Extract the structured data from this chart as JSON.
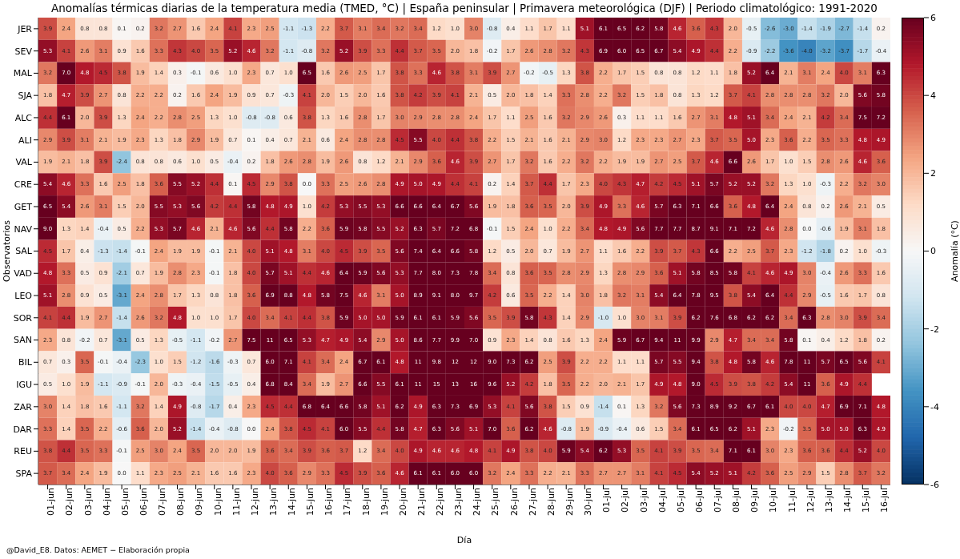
{
  "chart_data": {
    "type": "heatmap",
    "title": "Anomalías térmicas diarias de la temperatura media (TMED, °C) | España peninsular | Primavera meteorológica (DJF) | Periodo climatológico: 1991-2020",
    "xlabel": "Día",
    "ylabel": "Observatorios",
    "clabel": "Anomalía (°C)",
    "annotations": [
      "@David_E8. Datos: AEMET − Elaboración propia"
    ],
    "categories": [
      "01-jun",
      "02-jun",
      "03-jun",
      "04-jun",
      "05-jun",
      "06-jun",
      "07-jun",
      "08-jun",
      "09-jun",
      "10-jun",
      "11-jun",
      "12-jun",
      "13-jun",
      "14-jun",
      "15-jun",
      "16-jun",
      "17-jun",
      "18-jun",
      "19-jun",
      "20-jun",
      "21-jun",
      "22-jun",
      "23-jun",
      "24-jun",
      "25-jun",
      "26-jun",
      "27-jun",
      "28-jun",
      "29-jun",
      "30-jun",
      "01-jul",
      "02-jul",
      "03-jul",
      "04-jul",
      "05-jul",
      "06-jul",
      "07-jul",
      "08-jul",
      "09-jul",
      "10-jul",
      "11-jul",
      "12-jul",
      "13-jul",
      "14-jul",
      "15-jul",
      "16-jul"
    ],
    "y_categories": [
      "JER",
      "SEV",
      "MAL",
      "SJA",
      "ALC",
      "ALI",
      "VAL",
      "CRE",
      "GET",
      "NAV",
      "SAL",
      "VAD",
      "LEO",
      "SOR",
      "SAN",
      "BIL",
      "IGU",
      "ZAR",
      "DAR",
      "REU",
      "SPA"
    ],
    "cells": [
      [
        3.9,
        2.4,
        0.8,
        0.8,
        0.1,
        0.2,
        3.2,
        2.7,
        1.6,
        2.4,
        4.1,
        2.3,
        2.5,
        -1.1,
        -1.3,
        2.2,
        3.7,
        3.1,
        3.4,
        3.2,
        3.4,
        1.2,
        1.0,
        3.0,
        -0.8,
        0.4,
        1.1,
        1.7,
        1.1,
        5.1,
        6.1,
        6.5,
        6.2,
        5.8,
        4.6,
        3.6,
        4.3,
        2.0,
        -0.5,
        -2.6,
        -3.0,
        -1.4,
        -1.9,
        -2.7,
        -1.4,
        0.2
      ],
      [
        5.3,
        4.1,
        2.6,
        3.1,
        0.9,
        1.6,
        3.3,
        4.3,
        4.0,
        3.5,
        5.2,
        4.6,
        3.2,
        -1.1,
        -0.8,
        3.2,
        5.2,
        3.9,
        3.3,
        4.4,
        3.7,
        3.5,
        2.0,
        1.8,
        -0.2,
        1.7,
        2.6,
        2.8,
        3.2,
        4.3,
        6.9,
        6.0,
        6.5,
        6.7,
        5.4,
        4.9,
        4.4,
        2.2,
        -0.9,
        -2.2,
        -3.6,
        -4.0,
        -3.2,
        -3.7,
        -1.7,
        -0.4
      ],
      [
        3.2,
        7.0,
        4.8,
        4.5,
        3.8,
        1.9,
        1.4,
        0.3,
        -0.1,
        0.6,
        1.0,
        2.3,
        0.7,
        1.0,
        6.5,
        1.6,
        2.6,
        2.5,
        1.7,
        3.8,
        3.3,
        4.6,
        3.8,
        3.1,
        3.9,
        2.7,
        -0.2,
        -0.5,
        1.3,
        3.8,
        2.2,
        1.7,
        1.5,
        0.8,
        0.8,
        1.2,
        1.1,
        1.8,
        5.2,
        6.4,
        2.1,
        3.1,
        2.4,
        4.0,
        3.1,
        6.3
      ],
      [
        1.8,
        4.7,
        3.9,
        2.7,
        0.8,
        2.2,
        2.2,
        0.2,
        1.6,
        2.4,
        1.9,
        0.9,
        0.7,
        -0.3,
        4.1,
        2.0,
        1.5,
        2.0,
        1.6,
        3.8,
        4.2,
        3.9,
        4.1,
        2.1,
        0.5,
        2.0,
        1.8,
        1.4,
        3.3,
        2.8,
        2.2,
        3.2,
        1.5,
        1.8,
        0.8,
        1.3,
        1.2,
        3.7,
        4.1,
        2.8,
        2.8,
        2.8,
        3.2,
        2.0,
        5.6,
        5.8
      ],
      [
        4.4,
        6.1,
        2.0,
        3.9,
        1.3,
        2.4,
        2.2,
        2.8,
        2.5,
        1.3,
        1.0,
        -0.8,
        -0.8,
        0.6,
        3.8,
        1.3,
        1.6,
        2.8,
        1.7,
        3.0,
        2.9,
        2.8,
        2.8,
        2.4,
        1.7,
        1.1,
        2.5,
        1.6,
        3.2,
        2.9,
        2.6,
        0.3,
        1.1,
        1.1,
        1.6,
        2.7,
        3.1,
        4.8,
        5.1,
        3.4,
        2.4,
        2.1,
        4.2,
        3.4,
        7.5,
        7.2
      ],
      [
        2.9,
        3.9,
        3.1,
        2.1,
        1.9,
        2.3,
        1.3,
        1.8,
        2.9,
        1.9,
        0.7,
        0.1,
        0.4,
        0.7,
        2.1,
        0.6,
        2.4,
        2.8,
        2.8,
        4.5,
        5.5,
        4.0,
        4.4,
        3.8,
        2.2,
        1.5,
        2.1,
        1.6,
        2.1,
        2.9,
        3.0,
        1.2,
        2.3,
        2.3,
        2.7,
        2.3,
        3.7,
        3.5,
        5.0,
        2.3,
        3.6,
        2.2,
        3.5,
        3.3,
        4.8,
        4.9
      ],
      [
        1.9,
        2.1,
        1.8,
        3.9,
        -2.4,
        0.8,
        0.8,
        0.6,
        1.0,
        0.5,
        -0.4,
        0.2,
        1.8,
        2.6,
        2.8,
        1.9,
        2.6,
        0.8,
        1.2,
        2.1,
        2.9,
        3.6,
        4.6,
        3.9,
        2.7,
        1.7,
        3.2,
        1.6,
        2.2,
        3.2,
        2.2,
        1.9,
        1.9,
        2.7,
        2.5,
        3.7,
        4.6,
        6.6,
        2.6,
        1.7,
        1.0,
        1.5,
        2.8,
        2.6,
        4.6,
        3.6
      ],
      [
        5.4,
        4.6,
        3.3,
        1.6,
        2.5,
        1.8,
        3.6,
        5.5,
        5.2,
        4.4,
        0.1,
        4.5,
        2.9,
        3.8,
        0.0,
        3.3,
        2.5,
        2.6,
        2.8,
        4.9,
        5.0,
        4.9,
        4.4,
        4.1,
        0.2,
        1.4,
        3.7,
        4.4,
        1.7,
        2.3,
        4.0,
        4.3,
        4.7,
        4.2,
        4.5,
        5.1,
        5.7,
        5.2,
        5.2,
        3.2,
        1.3,
        1.0,
        -0.3,
        2.2,
        3.2,
        3.0
      ],
      [
        6.5,
        5.4,
        2.6,
        3.1,
        1.5,
        2.0,
        5.5,
        5.3,
        5.6,
        4.2,
        4.4,
        5.8,
        4.8,
        4.9,
        1.0,
        4.2,
        5.3,
        5.5,
        5.3,
        6.6,
        6.6,
        6.4,
        6.7,
        5.6,
        1.9,
        1.8,
        3.6,
        3.5,
        2.0,
        3.9,
        4.9,
        3.3,
        4.6,
        5.7,
        6.3,
        7.1,
        6.6,
        3.6,
        4.8,
        6.4,
        2.4,
        0.8,
        0.2,
        2.6,
        2.1,
        0.5
      ],
      [
        9.0,
        1.3,
        1.4,
        -0.4,
        0.5,
        2.2,
        5.3,
        5.7,
        4.6,
        2.1,
        4.6,
        5.6,
        4.4,
        5.8,
        2.2,
        3.6,
        5.9,
        5.8,
        5.5,
        5.2,
        6.3,
        5.7,
        7.2,
        6.8,
        -0.1,
        1.5,
        2.4,
        1.0,
        2.2,
        3.4,
        4.8,
        4.9,
        5.6,
        7.7,
        7.7,
        8.7,
        9.1,
        7.1,
        7.2,
        4.6,
        2.8,
        0.0,
        -0.6,
        1.9,
        3.1,
        1.8
      ],
      [
        4.5,
        1.7,
        0.4,
        -1.3,
        -1.4,
        -0.1,
        2.4,
        1.9,
        1.9,
        -0.1,
        2.1,
        4.0,
        5.1,
        4.8,
        3.1,
        4.0,
        4.5,
        3.9,
        3.5,
        5.6,
        7.4,
        6.4,
        6.6,
        5.8,
        1.2,
        0.5,
        2.0,
        0.7,
        1.9,
        2.7,
        1.1,
        1.6,
        2.2,
        3.9,
        3.7,
        4.3,
        6.6,
        2.2,
        2.5,
        3.7,
        2.3,
        -1.2,
        -1.8,
        0.2,
        1.0,
        -0.3
      ],
      [
        4.8,
        3.3,
        0.5,
        0.9,
        -2.1,
        0.7,
        1.9,
        2.8,
        2.3,
        -0.1,
        1.8,
        4.0,
        5.7,
        5.1,
        4.4,
        4.6,
        6.4,
        5.9,
        5.6,
        5.3,
        7.7,
        8.0,
        7.3,
        7.8,
        3.4,
        0.8,
        3.6,
        3.5,
        2.8,
        2.9,
        1.3,
        2.8,
        2.9,
        3.6,
        5.1,
        5.8,
        8.5,
        5.8,
        4.1,
        4.6,
        4.9,
        3.0,
        -0.4,
        2.6,
        3.3,
        1.6
      ],
      [
        5.1,
        2.8,
        0.9,
        0.5,
        -3.1,
        2.4,
        2.8,
        1.7,
        1.3,
        0.8,
        1.8,
        3.6,
        6.9,
        8.8,
        4.8,
        5.8,
        7.5,
        4.6,
        3.1,
        5.0,
        8.9,
        9.1,
        8.0,
        9.7,
        4.2,
        0.6,
        3.5,
        2.2,
        1.4,
        3.0,
        1.8,
        3.2,
        3.1,
        5.4,
        6.4,
        7.8,
        9.5,
        3.8,
        5.4,
        6.4,
        4.4,
        2.9,
        -0.5,
        1.6,
        1.7,
        0.8
      ],
      [
        4.1,
        4.4,
        1.9,
        2.7,
        -1.4,
        2.6,
        3.2,
        4.8,
        1.0,
        1.0,
        1.7,
        4.0,
        3.4,
        4.1,
        4.4,
        3.8,
        5.9,
        5.0,
        5.0,
        5.9,
        6.1,
        6.1,
        5.9,
        5.6,
        3.5,
        3.9,
        5.8,
        4.3,
        1.4,
        2.9,
        -1.0,
        1.0,
        3.0,
        3.1,
        3.9,
        6.2,
        7.6,
        6.8,
        6.2,
        6.2,
        3.4,
        6.3,
        2.8,
        3.0,
        3.9,
        3.4
      ],
      [
        2.3,
        0.8,
        -0.2,
        0.7,
        -3.1,
        0.5,
        1.3,
        -0.5,
        -1.1,
        -0.2,
        2.7,
        7.5,
        11,
        6.5,
        5.3,
        4.7,
        4.9,
        5.4,
        2.9,
        5.0,
        8.6,
        7.7,
        9.9,
        7.0,
        0.9,
        2.3,
        1.4,
        0.8,
        1.6,
        1.3,
        2.4,
        5.9,
        6.7,
        9.4,
        11,
        9.9,
        2.9,
        4.7,
        3.4,
        3.4,
        5.8,
        0.1,
        0.4,
        1.2,
        1.8,
        0.2
      ],
      [
        0.7,
        0.3,
        3.5,
        -0.1,
        -0.4,
        -2.3,
        1.0,
        1.5,
        -1.2,
        -1.6,
        -0.3,
        0.7,
        6.0,
        7.1,
        4.1,
        3.4,
        2.4,
        6.7,
        6.1,
        4.8,
        11,
        9.8,
        12,
        12,
        9.0,
        7.3,
        6.2,
        2.5,
        3.9,
        2.2,
        2.2,
        1.1,
        1.1,
        5.7,
        5.5,
        9.4,
        3.8,
        4.8,
        5.8,
        4.6,
        7.8,
        11,
        5.7,
        6.5,
        5.6,
        4.1
      ],
      [
        0.5,
        1.0,
        1.9,
        -1.1,
        -0.9,
        -0.1,
        2.0,
        -0.3,
        -0.4,
        -1.5,
        -0.5,
        0.4,
        6.8,
        8.4,
        3.4,
        1.9,
        2.7,
        6.6,
        5.5,
        6.1,
        11,
        15,
        13,
        16,
        9.6,
        5.2,
        4.2,
        1.8,
        3.5,
        2.2,
        2.0,
        2.1,
        1.7,
        4.9,
        4.8,
        9.0,
        4.5,
        3.9,
        3.8,
        4.2,
        5.4,
        11,
        3.6,
        4.9,
        4.4,
        null
      ],
      [
        3.0,
        1.4,
        1.8,
        1.6,
        -1.1,
        3.2,
        1.4,
        4.9,
        -0.8,
        -1.7,
        0.4,
        2.3,
        4.5,
        4.4,
        6.8,
        6.4,
        6.6,
        5.8,
        5.1,
        6.2,
        4.9,
        6.3,
        7.3,
        6.9,
        5.3,
        4.1,
        5.6,
        3.8,
        1.5,
        0.9,
        -1.4,
        0.1,
        1.3,
        3.2,
        5.6,
        7.3,
        8.9,
        9.2,
        6.7,
        6.1,
        4.0,
        4.0,
        4.7,
        6.9,
        7.1,
        4.8
      ],
      [
        3.3,
        1.4,
        3.5,
        2.2,
        -0.6,
        3.6,
        2.0,
        5.2,
        -1.4,
        -0.4,
        -0.8,
        0.0,
        2.4,
        3.8,
        4.5,
        4.1,
        6.0,
        5.5,
        4.4,
        5.8,
        4.7,
        6.3,
        5.6,
        5.1,
        7.0,
        3.6,
        6.2,
        4.6,
        -0.8,
        1.9,
        -0.9,
        -0.4,
        0.6,
        1.5,
        3.4,
        6.1,
        6.5,
        6.2,
        5.1,
        2.3,
        -0.2,
        3.5,
        5.0,
        5.0,
        6.3,
        4.9
      ],
      [
        3.8,
        4.4,
        3.5,
        3.3,
        -0.1,
        2.5,
        3.0,
        2.4,
        3.5,
        2.0,
        2.0,
        1.9,
        3.6,
        3.4,
        3.9,
        3.6,
        3.7,
        1.2,
        3.4,
        4.0,
        4.9,
        4.6,
        4.6,
        4.8,
        4.1,
        4.9,
        3.8,
        4.0,
        5.9,
        5.4,
        6.2,
        5.3,
        3.5,
        4.1,
        3.9,
        3.5,
        3.4,
        7.1,
        6.1,
        3.0,
        2.3,
        3.6,
        3.6,
        4.4,
        5.2,
        4.0
      ],
      [
        3.7,
        3.4,
        2.4,
        1.9,
        0.0,
        1.1,
        2.3,
        2.5,
        2.1,
        1.6,
        1.6,
        2.3,
        4.0,
        3.6,
        2.9,
        3.3,
        4.5,
        3.9,
        3.6,
        4.6,
        6.1,
        6.1,
        6.0,
        6.0,
        3.2,
        2.4,
        3.3,
        2.2,
        2.1,
        3.3,
        2.7,
        2.7,
        3.1,
        4.1,
        4.5,
        5.4,
        5.2,
        5.1,
        4.2,
        3.6,
        2.5,
        2.9,
        1.5,
        2.8,
        3.7,
        3.2
      ]
    ],
    "cell_labels": [
      [
        "3.9",
        "2.4",
        "0.8",
        "0.8",
        "0.1",
        "0.2",
        "3.2",
        "2.7",
        "1.6",
        "2.4",
        "4.1",
        "2.3",
        "2.5",
        "-1.1",
        "-1.3",
        "2.2",
        "3.7",
        "3.1",
        "3.4",
        "3.2",
        "3.4",
        "1.2",
        "1.0",
        "3.0",
        "-0.8",
        "0.4",
        "1.1",
        "1.7",
        "1.1",
        "5.1",
        "6.1",
        "6.5",
        "6.2",
        "5.8",
        "4.6",
        "3.6",
        "4.3",
        "2.0",
        "-0.5",
        "-2.6",
        "-3.0",
        "-1.4",
        "-1.9",
        "-2.7",
        "-1.4",
        "0.2"
      ],
      [
        "5.3",
        "4.1",
        "2.6",
        "3.1",
        "0.9",
        "1.6",
        "3.3",
        "4.3",
        "4.0",
        "3.5",
        "5.2",
        "4.6",
        "3.2",
        "-1.1",
        "-0.8",
        "3.2",
        "5.2",
        "3.9",
        "3.3",
        "4.4",
        "3.7",
        "3.5",
        "2.0",
        "1.8",
        "-0.2",
        "1.7",
        "2.6",
        "2.8",
        "3.2",
        "4.3",
        "6.9",
        "6.0",
        "6.5",
        "6.7",
        "5.4",
        "4.9",
        "4.4",
        "2.2",
        "-0.9",
        "-2.2",
        "-3.6",
        "-4.0",
        "-3.2",
        "-3.7",
        "-1.7",
        "-0.4"
      ],
      [
        "3.2",
        "7.0",
        "4.8",
        "4.5",
        "3.8",
        "1.9",
        "1.4",
        "0.3",
        "-0.1",
        "0.6",
        "1.0",
        "2.3",
        "0.7",
        "1.0",
        "6.5",
        "1.6",
        "2.6",
        "2.5",
        "1.7",
        "3.8",
        "3.3",
        "4.6",
        "3.8",
        "3.1",
        "3.9",
        "2.7",
        "-0.2",
        "-0.5",
        "1.3",
        "3.8",
        "2.2",
        "1.7",
        "1.5",
        "0.8",
        "0.8",
        "1.2",
        "1.1",
        "1.8",
        "5.2",
        "6.4",
        "2.1",
        "3.1",
        "2.4",
        "4.0",
        "3.1",
        "6.3"
      ],
      [
        "1.8",
        "4.7",
        "3.9",
        "2.7",
        "0.8",
        "2.2",
        "2.2",
        "0.2",
        "1.6",
        "2.4",
        "1.9",
        "0.9",
        "0.7",
        "-0.3",
        "4.1",
        "2.0",
        "1.5",
        "2.0",
        "1.6",
        "3.8",
        "4.2",
        "3.9",
        "4.1",
        "2.1",
        "0.5",
        "2.0",
        "1.8",
        "1.4",
        "3.3",
        "2.8",
        "2.2",
        "3.2",
        "1.5",
        "1.8",
        "0.8",
        "1.3",
        "1.2",
        "3.7",
        "4.1",
        "2.8",
        "2.8",
        "2.8",
        "3.2",
        "2.0",
        "5.6",
        "5.8"
      ],
      [
        "4.4",
        "6.1",
        "2.0",
        "3.9",
        "1.3",
        "2.4",
        "2.2",
        "2.8",
        "2.5",
        "1.3",
        "1.0",
        "-0.8",
        "-0.8",
        "0.6",
        "3.8",
        "1.3",
        "1.6",
        "2.8",
        "1.7",
        "3.0",
        "2.9",
        "2.8",
        "2.8",
        "2.4",
        "1.7",
        "1.1",
        "2.5",
        "1.6",
        "3.2",
        "2.9",
        "2.6",
        "0.3",
        "1.1",
        "1.1",
        "1.6",
        "2.7",
        "3.1",
        "4.8",
        "5.1",
        "3.4",
        "2.4",
        "2.1",
        "4.2",
        "3.4",
        "7.5",
        "7.2"
      ],
      [
        "2.9",
        "3.9",
        "3.1",
        "2.1",
        "1.9",
        "2.3",
        "1.3",
        "1.8",
        "2.9",
        "1.9",
        "0.7",
        "0.1",
        "0.4",
        "0.7",
        "2.1",
        "0.6",
        "2.4",
        "2.8",
        "2.8",
        "4.5",
        "5.5",
        "4.0",
        "4.4",
        "3.8",
        "2.2",
        "1.5",
        "2.1",
        "1.6",
        "2.1",
        "2.9",
        "3.0",
        "1.2",
        "2.3",
        "2.3",
        "2.7",
        "2.3",
        "3.7",
        "3.5",
        "5.0",
        "2.3",
        "3.6",
        "2.2",
        "3.5",
        "3.3",
        "4.8",
        "4.9"
      ],
      [
        "1.9",
        "2.1",
        "1.8",
        "3.9",
        "-2.4",
        "0.8",
        "0.8",
        "0.6",
        "1.0",
        "0.5",
        "-0.4",
        "0.2",
        "1.8",
        "2.6",
        "2.8",
        "1.9",
        "2.6",
        "0.8",
        "1.2",
        "2.1",
        "2.9",
        "3.6",
        "4.6",
        "3.9",
        "2.7",
        "1.7",
        "3.2",
        "1.6",
        "2.2",
        "3.2",
        "2.2",
        "1.9",
        "1.9",
        "2.7",
        "2.5",
        "3.7",
        "4.6",
        "6.6",
        "2.6",
        "1.7",
        "1.0",
        "1.5",
        "2.8",
        "2.6",
        "4.6",
        "3.6"
      ],
      [
        "5.4",
        "4.6",
        "3.3",
        "1.6",
        "2.5",
        "1.8",
        "3.6",
        "5.5",
        "5.2",
        "4.4",
        "0.1",
        "4.5",
        "2.9",
        "3.8",
        "0.0",
        "3.3",
        "2.5",
        "2.6",
        "2.8",
        "4.9",
        "5.0",
        "4.9",
        "4.4",
        "4.1",
        "0.2",
        "1.4",
        "3.7",
        "4.4",
        "1.7",
        "2.3",
        "4.0",
        "4.3",
        "4.7",
        "4.2",
        "4.5",
        "5.1",
        "5.7",
        "5.2",
        "5.2",
        "3.2",
        "1.3",
        "1.0",
        "-0.3",
        "2.2",
        "3.2",
        "3.0"
      ],
      [
        "6.5",
        "5.4",
        "2.6",
        "3.1",
        "1.5",
        "2.0",
        "5.5",
        "5.3",
        "5.6",
        "4.2",
        "4.4",
        "5.8",
        "4.8",
        "4.9",
        "1.0",
        "4.2",
        "5.3",
        "5.5",
        "5.3",
        "6.6",
        "6.6",
        "6.4",
        "6.7",
        "5.6",
        "1.9",
        "1.8",
        "3.6",
        "3.5",
        "2.0",
        "3.9",
        "4.9",
        "3.3",
        "4.6",
        "5.7",
        "6.3",
        "7.1",
        "6.6",
        "3.6",
        "4.8",
        "6.4",
        "2.4",
        "0.8",
        "0.2",
        "2.6",
        "2.1",
        "0.5"
      ],
      [
        "9.0",
        "1.3",
        "1.4",
        "-0.4",
        "0.5",
        "2.2",
        "5.3",
        "5.7",
        "4.6",
        "2.1",
        "4.6",
        "5.6",
        "4.4",
        "5.8",
        "2.2",
        "3.6",
        "5.9",
        "5.8",
        "5.5",
        "5.2",
        "6.3",
        "5.7",
        "7.2",
        "6.8",
        "-0.1",
        "1.5",
        "2.4",
        "1.0",
        "2.2",
        "3.4",
        "4.8",
        "4.9",
        "5.6",
        "7.7",
        "7.7",
        "8.7",
        "9.1",
        "7.1",
        "7.2",
        "4.6",
        "2.8",
        "0.0",
        "-0.6",
        "1.9",
        "3.1",
        "1.8"
      ],
      [
        "4.5",
        "1.7",
        "0.4",
        "-1.3",
        "-1.4",
        "-0.1",
        "2.4",
        "1.9",
        "1.9",
        "-0.1",
        "2.1",
        "4.0",
        "5.1",
        "4.8",
        "3.1",
        "4.0",
        "4.5",
        "3.9",
        "3.5",
        "5.6",
        "7.4",
        "6.4",
        "6.6",
        "5.8",
        "1.2",
        "0.5",
        "2.0",
        "0.7",
        "1.9",
        "2.7",
        "1.1",
        "1.6",
        "2.2",
        "3.9",
        "3.7",
        "4.3",
        "6.6",
        "2.2",
        "2.5",
        "3.7",
        "2.3",
        "-1.2",
        "-1.8",
        "0.2",
        "1.0",
        "-0.3"
      ],
      [
        "4.8",
        "3.3",
        "0.5",
        "0.9",
        "-2.1",
        "0.7",
        "1.9",
        "2.8",
        "2.3",
        "-0.1",
        "1.8",
        "4.0",
        "5.7",
        "5.1",
        "4.4",
        "4.6",
        "6.4",
        "5.9",
        "5.6",
        "5.3",
        "7.7",
        "8.0",
        "7.3",
        "7.8",
        "3.4",
        "0.8",
        "3.6",
        "3.5",
        "2.8",
        "2.9",
        "1.3",
        "2.8",
        "2.9",
        "3.6",
        "5.1",
        "5.8",
        "8.5",
        "5.8",
        "4.1",
        "4.6",
        "4.9",
        "3.0",
        "-0.4",
        "2.6",
        "3.3",
        "1.6"
      ],
      [
        "5.1",
        "2.8",
        "0.9",
        "0.5",
        "-3.1",
        "2.4",
        "2.8",
        "1.7",
        "1.3",
        "0.8",
        "1.8",
        "3.6",
        "6.9",
        "8.8",
        "4.8",
        "5.8",
        "7.5",
        "4.6",
        "3.1",
        "5.0",
        "8.9",
        "9.1",
        "8.0",
        "9.7",
        "4.2",
        "0.6",
        "3.5",
        "2.2",
        "1.4",
        "3.0",
        "1.8",
        "3.2",
        "3.1",
        "5.4",
        "6.4",
        "7.8",
        "9.5",
        "3.8",
        "5.4",
        "6.4",
        "4.4",
        "2.9",
        "-0.5",
        "1.6",
        "1.7",
        "0.8"
      ],
      [
        "4.1",
        "4.4",
        "1.9",
        "2.7",
        "-1.4",
        "2.6",
        "3.2",
        "4.8",
        "1.0",
        "1.0",
        "1.7",
        "4.0",
        "3.4",
        "4.1",
        "4.4",
        "3.8",
        "5.9",
        "5.0",
        "5.0",
        "5.9",
        "6.1",
        "6.1",
        "5.9",
        "5.6",
        "3.5",
        "3.9",
        "5.8",
        "4.3",
        "1.4",
        "2.9",
        "-1.0",
        "1.0",
        "3.0",
        "3.1",
        "3.9",
        "6.2",
        "7.6",
        "6.8",
        "6.2",
        "6.2",
        "3.4",
        "6.3",
        "2.8",
        "3.0",
        "3.9",
        "3.4"
      ],
      [
        "2.3",
        "0.8",
        "-0.2",
        "0.7",
        "-3.1",
        "0.5",
        "1.3",
        "-0.5",
        "-1.1",
        "-0.2",
        "2.7",
        "7.5",
        "11",
        "6.5",
        "5.3",
        "4.7",
        "4.9",
        "5.4",
        "2.9",
        "5.0",
        "8.6",
        "7.7",
        "9.9",
        "7.0",
        "0.9",
        "2.3",
        "1.4",
        "0.8",
        "1.6",
        "1.3",
        "2.4",
        "5.9",
        "6.7",
        "9.4",
        "11",
        "9.9",
        "2.9",
        "4.7",
        "3.4",
        "3.4",
        "5.8",
        "0.1",
        "0.4",
        "1.2",
        "1.8",
        "0.2"
      ],
      [
        "0.7",
        "0.3",
        "3.5",
        "-0.1",
        "-0.4",
        "-2.3",
        "1.0",
        "1.5",
        "-1.2",
        "-1.6",
        "-0.3",
        "0.7",
        "6.0",
        "7.1",
        "4.1",
        "3.4",
        "2.4",
        "6.7",
        "6.1",
        "4.8",
        "11",
        "9.8",
        "12",
        "12",
        "9.0",
        "7.3",
        "6.2",
        "2.5",
        "3.9",
        "2.2",
        "2.2",
        "1.1",
        "1.1",
        "5.7",
        "5.5",
        "9.4",
        "3.8",
        "4.8",
        "5.8",
        "4.6",
        "7.8",
        "11",
        "5.7",
        "6.5",
        "5.6",
        "4.1"
      ],
      [
        "0.5",
        "1.0",
        "1.9",
        "-1.1",
        "-0.9",
        "-0.1",
        "2.0",
        "-0.3",
        "-0.4",
        "-1.5",
        "-0.5",
        "0.4",
        "6.8",
        "8.4",
        "3.4",
        "1.9",
        "2.7",
        "6.6",
        "5.5",
        "6.1",
        "11",
        "15",
        "13",
        "16",
        "9.6",
        "5.2",
        "4.2",
        "1.8",
        "3.5",
        "2.2",
        "2.0",
        "2.1",
        "1.7",
        "4.9",
        "4.8",
        "9.0",
        "4.5",
        "3.9",
        "3.8",
        "4.2",
        "5.4",
        "11",
        "3.6",
        "4.9",
        "4.4",
        null
      ],
      [
        "3.0",
        "1.4",
        "1.8",
        "1.6",
        "-1.1",
        "3.2",
        "1.4",
        "4.9",
        "-0.8",
        "-1.7",
        "0.4",
        "2.3",
        "4.5",
        "4.4",
        "6.8",
        "6.4",
        "6.6",
        "5.8",
        "5.1",
        "6.2",
        "4.9",
        "6.3",
        "7.3",
        "6.9",
        "5.3",
        "4.1",
        "5.6",
        "3.8",
        "1.5",
        "0.9",
        "-1.4",
        "0.1",
        "1.3",
        "3.2",
        "5.6",
        "7.3",
        "8.9",
        "9.2",
        "6.7",
        "6.1",
        "4.0",
        "4.0",
        "4.7",
        "6.9",
        "7.1",
        "4.8"
      ],
      [
        "3.3",
        "1.4",
        "3.5",
        "2.2",
        "-0.6",
        "3.6",
        "2.0",
        "5.2",
        "-1.4",
        "-0.4",
        "-0.8",
        "0.0",
        "2.4",
        "3.8",
        "4.5",
        "4.1",
        "6.0",
        "5.5",
        "4.4",
        "5.8",
        "4.7",
        "6.3",
        "5.6",
        "5.1",
        "7.0",
        "3.6",
        "6.2",
        "4.6",
        "-0.8",
        "1.9",
        "-0.9",
        "-0.4",
        "0.6",
        "1.5",
        "3.4",
        "6.1",
        "6.5",
        "6.2",
        "5.1",
        "2.3",
        "-0.2",
        "3.5",
        "5.0",
        "5.0",
        "6.3",
        "4.9"
      ],
      [
        "3.8",
        "4.4",
        "3.5",
        "3.3",
        "-0.1",
        "2.5",
        "3.0",
        "2.4",
        "3.5",
        "2.0",
        "2.0",
        "1.9",
        "3.6",
        "3.4",
        "3.9",
        "3.6",
        "3.7",
        "1.2",
        "3.4",
        "4.0",
        "4.9",
        "4.6",
        "4.6",
        "4.8",
        "4.1",
        "4.9",
        "3.8",
        "4.0",
        "5.9",
        "5.4",
        "6.2",
        "5.3",
        "3.5",
        "4.1",
        "3.9",
        "3.5",
        "3.4",
        "7.1",
        "6.1",
        "3.0",
        "2.3",
        "3.6",
        "3.6",
        "4.4",
        "5.2",
        "4.0"
      ],
      [
        "3.7",
        "3.4",
        "2.4",
        "1.9",
        "0.0",
        "1.1",
        "2.3",
        "2.5",
        "2.1",
        "1.6",
        "1.6",
        "2.3",
        "4.0",
        "3.6",
        "2.9",
        "3.3",
        "4.5",
        "3.9",
        "3.6",
        "4.6",
        "6.1",
        "6.1",
        "6.0",
        "6.0",
        "3.2",
        "2.4",
        "3.3",
        "2.2",
        "2.1",
        "3.3",
        "2.7",
        "2.7",
        "3.1",
        "4.1",
        "4.5",
        "5.4",
        "5.2",
        "5.1",
        "4.2",
        "3.6",
        "2.5",
        "2.9",
        "1.5",
        "2.8",
        "3.7",
        "3.2"
      ]
    ],
    "clim": [
      -6,
      6
    ],
    "cticks": [
      -6,
      -4,
      -2,
      0,
      2,
      4,
      6
    ]
  }
}
